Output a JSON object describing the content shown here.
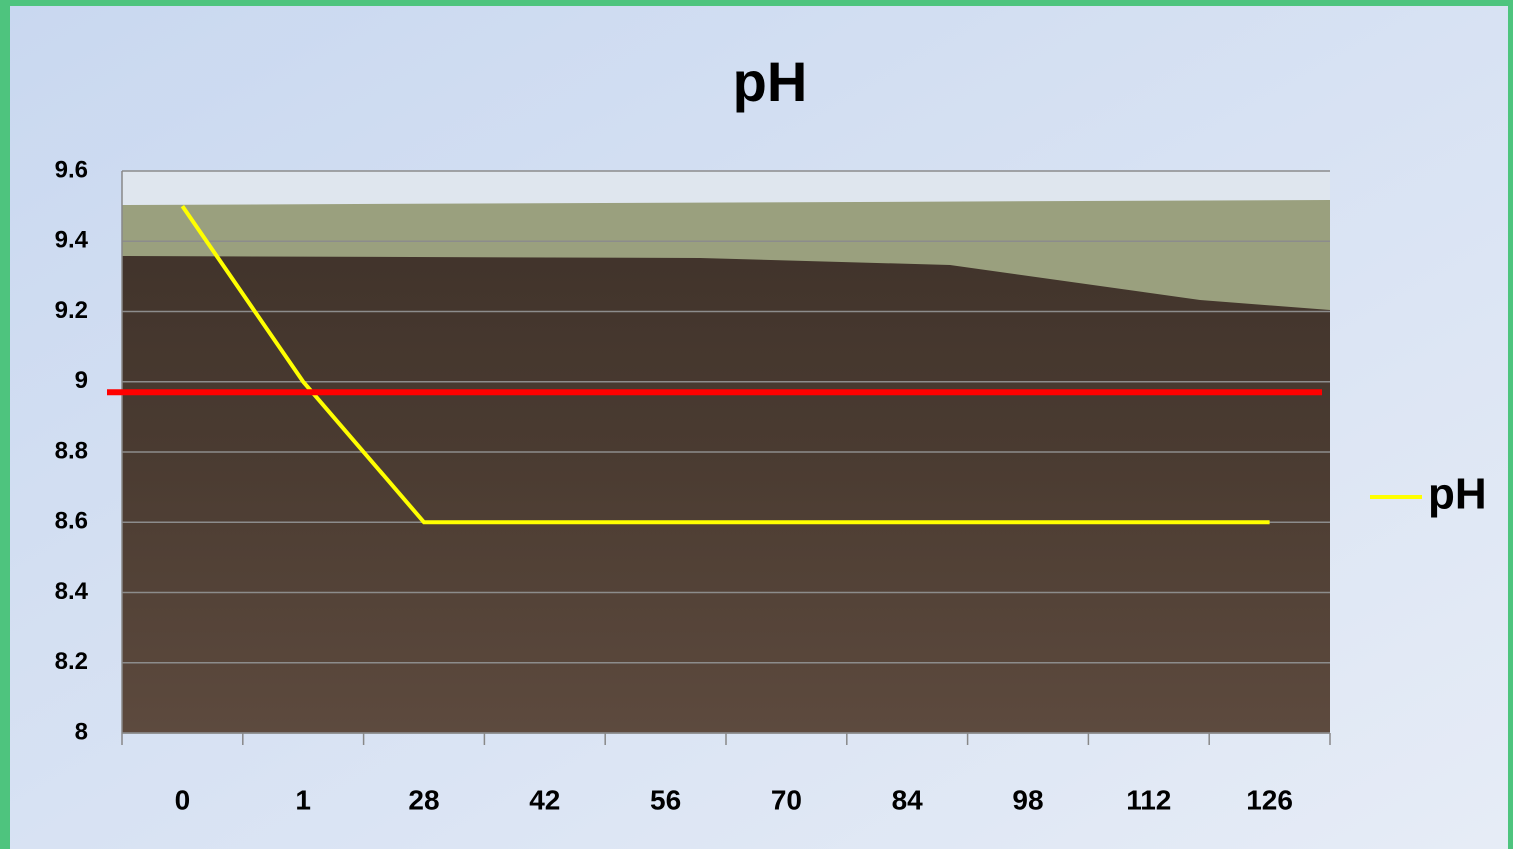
{
  "chart_data": {
    "type": "line",
    "title": "pH",
    "categories": [
      "0",
      "1",
      "28",
      "42",
      "56",
      "70",
      "84",
      "98",
      "112",
      "126"
    ],
    "series": [
      {
        "name": "pH",
        "color": "#ffff00",
        "values": [
          9.5,
          9.0,
          8.6,
          8.6,
          8.6,
          8.6,
          8.6,
          8.6,
          8.6,
          8.6
        ]
      }
    ],
    "threshold": {
      "value": 8.97,
      "color": "#ff0000"
    },
    "ylim": [
      8,
      9.6
    ],
    "yticks": [
      8,
      8.2,
      8.4,
      8.6,
      8.8,
      9,
      9.2,
      9.4,
      9.6
    ],
    "grid": true,
    "legend": "right"
  }
}
